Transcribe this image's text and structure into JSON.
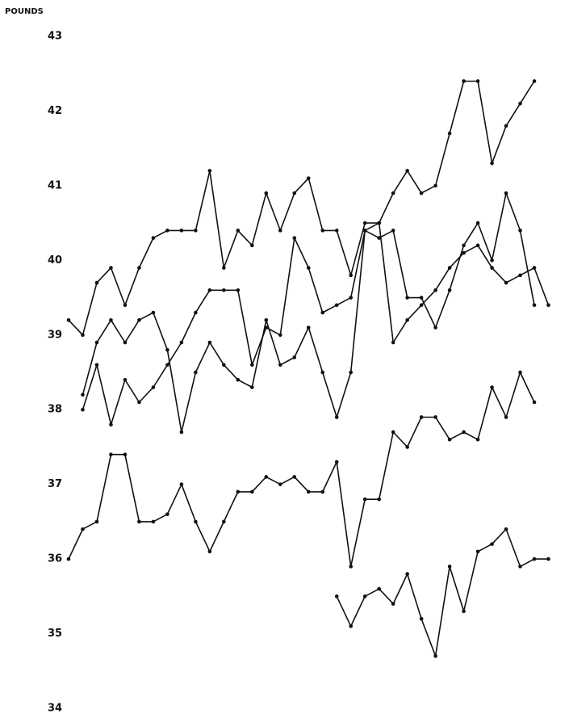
{
  "chart_data": {
    "type": "line",
    "y_label": "POUNDS",
    "categories": [
      null,
      null,
      null,
      null,
      null,
      null,
      null,
      null,
      null,
      null,
      null,
      null,
      null,
      null,
      null,
      null,
      null,
      null,
      null,
      null,
      null,
      null,
      null,
      null,
      null,
      null,
      null,
      null,
      null,
      null,
      null,
      null,
      null,
      null,
      null,
      null
    ],
    "ylim": [
      34,
      43
    ],
    "yticks": [
      34,
      35,
      36,
      37,
      38,
      39,
      40,
      41,
      42,
      43
    ],
    "grid": false,
    "markers": true,
    "series": [
      {
        "color": "#111111",
        "values": [
          39.2,
          39.0,
          39.7,
          39.9,
          39.4,
          39.9,
          40.3,
          40.4,
          40.4,
          40.4,
          41.2,
          39.9,
          40.4,
          40.2,
          40.9,
          40.4,
          40.9,
          41.1,
          40.4,
          40.4,
          39.8,
          40.5,
          40.5,
          40.9,
          41.2,
          40.9,
          41.0,
          41.7,
          42.4,
          42.4,
          41.3,
          41.8,
          42.1,
          42.4,
          null,
          null
        ]
      },
      {
        "color": "#111111",
        "values": [
          null,
          38.2,
          38.9,
          39.2,
          38.9,
          39.2,
          39.3,
          38.8,
          37.7,
          38.5,
          38.9,
          38.6,
          38.4,
          38.3,
          39.2,
          38.6,
          38.7,
          39.1,
          38.5,
          37.9,
          38.5,
          40.4,
          40.3,
          40.4,
          39.5,
          39.5,
          39.1,
          39.6,
          40.2,
          40.5,
          40.0,
          40.9,
          40.4,
          39.4,
          null,
          null
        ]
      },
      {
        "color": "#111111",
        "values": [
          null,
          38.0,
          38.6,
          37.8,
          38.4,
          38.1,
          38.3,
          38.6,
          38.9,
          39.3,
          39.6,
          39.6,
          39.6,
          38.6,
          39.1,
          39.0,
          40.3,
          39.9,
          39.3,
          39.4,
          39.5,
          40.4,
          40.5,
          38.9,
          39.2,
          39.4,
          39.6,
          39.9,
          40.1,
          40.2,
          39.9,
          39.7,
          39.8,
          39.9,
          39.4,
          null
        ]
      },
      {
        "color": "#111111",
        "values": [
          36.0,
          36.4,
          36.5,
          37.4,
          37.4,
          36.5,
          36.5,
          36.6,
          37.0,
          36.5,
          36.1,
          36.5,
          36.9,
          36.9,
          37.1,
          37.0,
          37.1,
          36.9,
          36.9,
          37.3,
          35.9,
          36.8,
          36.8,
          37.7,
          37.5,
          37.9,
          37.9,
          37.6,
          37.7,
          37.6,
          38.3,
          37.9,
          38.5,
          38.1,
          null,
          null
        ]
      },
      {
        "color": "#111111",
        "values": [
          null,
          null,
          null,
          null,
          null,
          null,
          null,
          null,
          null,
          null,
          null,
          null,
          null,
          null,
          null,
          null,
          null,
          null,
          null,
          35.5,
          35.1,
          35.5,
          35.6,
          35.4,
          35.8,
          35.2,
          34.7,
          35.9,
          35.3,
          36.1,
          36.2,
          36.4,
          35.9,
          36.0,
          36.0,
          null
        ]
      }
    ]
  }
}
